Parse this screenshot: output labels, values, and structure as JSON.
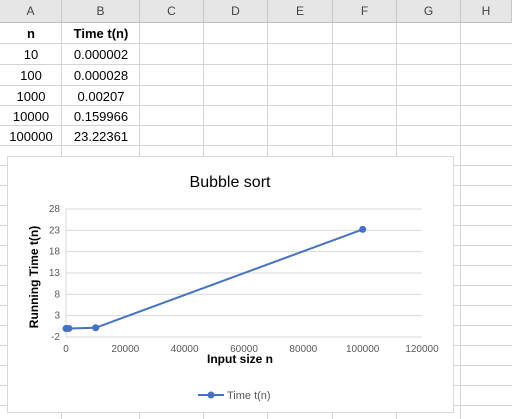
{
  "columns": [
    "A",
    "B",
    "C",
    "D",
    "E",
    "F",
    "G",
    "H"
  ],
  "table": {
    "headers": [
      "n",
      "Time t(n)"
    ],
    "rows": [
      [
        "10",
        "0.000002"
      ],
      [
        "100",
        "0.000028"
      ],
      [
        "1000",
        "0.00207"
      ],
      [
        "10000",
        "0.159966"
      ],
      [
        "100000",
        "23.22361"
      ]
    ]
  },
  "colors": {
    "series": "#4472c4",
    "gridline": "#d9d9d9",
    "axis_text": "#595959",
    "title_text": "#000000"
  },
  "chart_data": {
    "type": "line",
    "title": "Bubble sort",
    "xlabel": "Input size n",
    "ylabel": "Running Time t(n)",
    "series": [
      {
        "name": "Time t(n)",
        "points": [
          {
            "x": 10,
            "y": 2e-06
          },
          {
            "x": 100,
            "y": 2.8e-05
          },
          {
            "x": 1000,
            "y": 0.00207
          },
          {
            "x": 10000,
            "y": 0.159966
          },
          {
            "x": 100000,
            "y": 23.22361
          }
        ]
      }
    ],
    "xlim": [
      0,
      120000
    ],
    "ylim": [
      -2,
      28
    ],
    "x_ticks": [
      "0",
      "20000",
      "40000",
      "60000",
      "80000",
      "100000",
      "120000"
    ],
    "y_ticks": [
      "28",
      "23",
      "18",
      "13",
      "8",
      "3",
      "-2"
    ],
    "x_tick_values": [
      0,
      20000,
      40000,
      60000,
      80000,
      100000,
      120000
    ],
    "y_tick_values": [
      28,
      23,
      18,
      13,
      8,
      3,
      -2
    ],
    "grid": true,
    "legend": "bottom"
  }
}
